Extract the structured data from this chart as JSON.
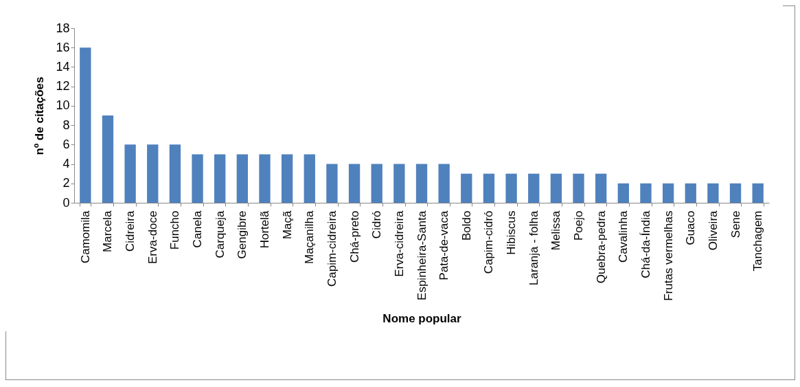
{
  "chart_data": {
    "type": "bar",
    "xlabel": "Nome popular",
    "ylabel": "nº de citações",
    "categories": [
      "Camomila",
      "Marcela",
      "Cidreira",
      "Erva-doce",
      "Funcho",
      "Canela",
      "Carqueja",
      "Gengibre",
      "Hortelã",
      "Maçã",
      "Maçanilha",
      "Capim-cidreira",
      "Chá-preto",
      "Cidró",
      "Erva-cidreira",
      "Espinheira-Santa",
      "Pata-de-vaca",
      "Boldo",
      "Capim-cidró",
      "Hibiscus",
      "Laranja - folha",
      "Melissa",
      "Poejo",
      "Quebra-pedra",
      "Cavalinha",
      "Chá-da-Índia",
      "Frutas vermelhas",
      "Guaco",
      "Oliveira",
      "Sene",
      "Tanchagem"
    ],
    "values": [
      16,
      9,
      6,
      6,
      6,
      5,
      5,
      5,
      5,
      5,
      5,
      4,
      4,
      4,
      4,
      4,
      4,
      3,
      3,
      3,
      3,
      3,
      3,
      3,
      2,
      2,
      2,
      2,
      2,
      2,
      2
    ],
    "color": "#4f81bd",
    "ylim": [
      0,
      18
    ],
    "yticks": [
      0,
      2,
      4,
      6,
      8,
      10,
      12,
      14,
      16,
      18
    ],
    "grid": false
  }
}
